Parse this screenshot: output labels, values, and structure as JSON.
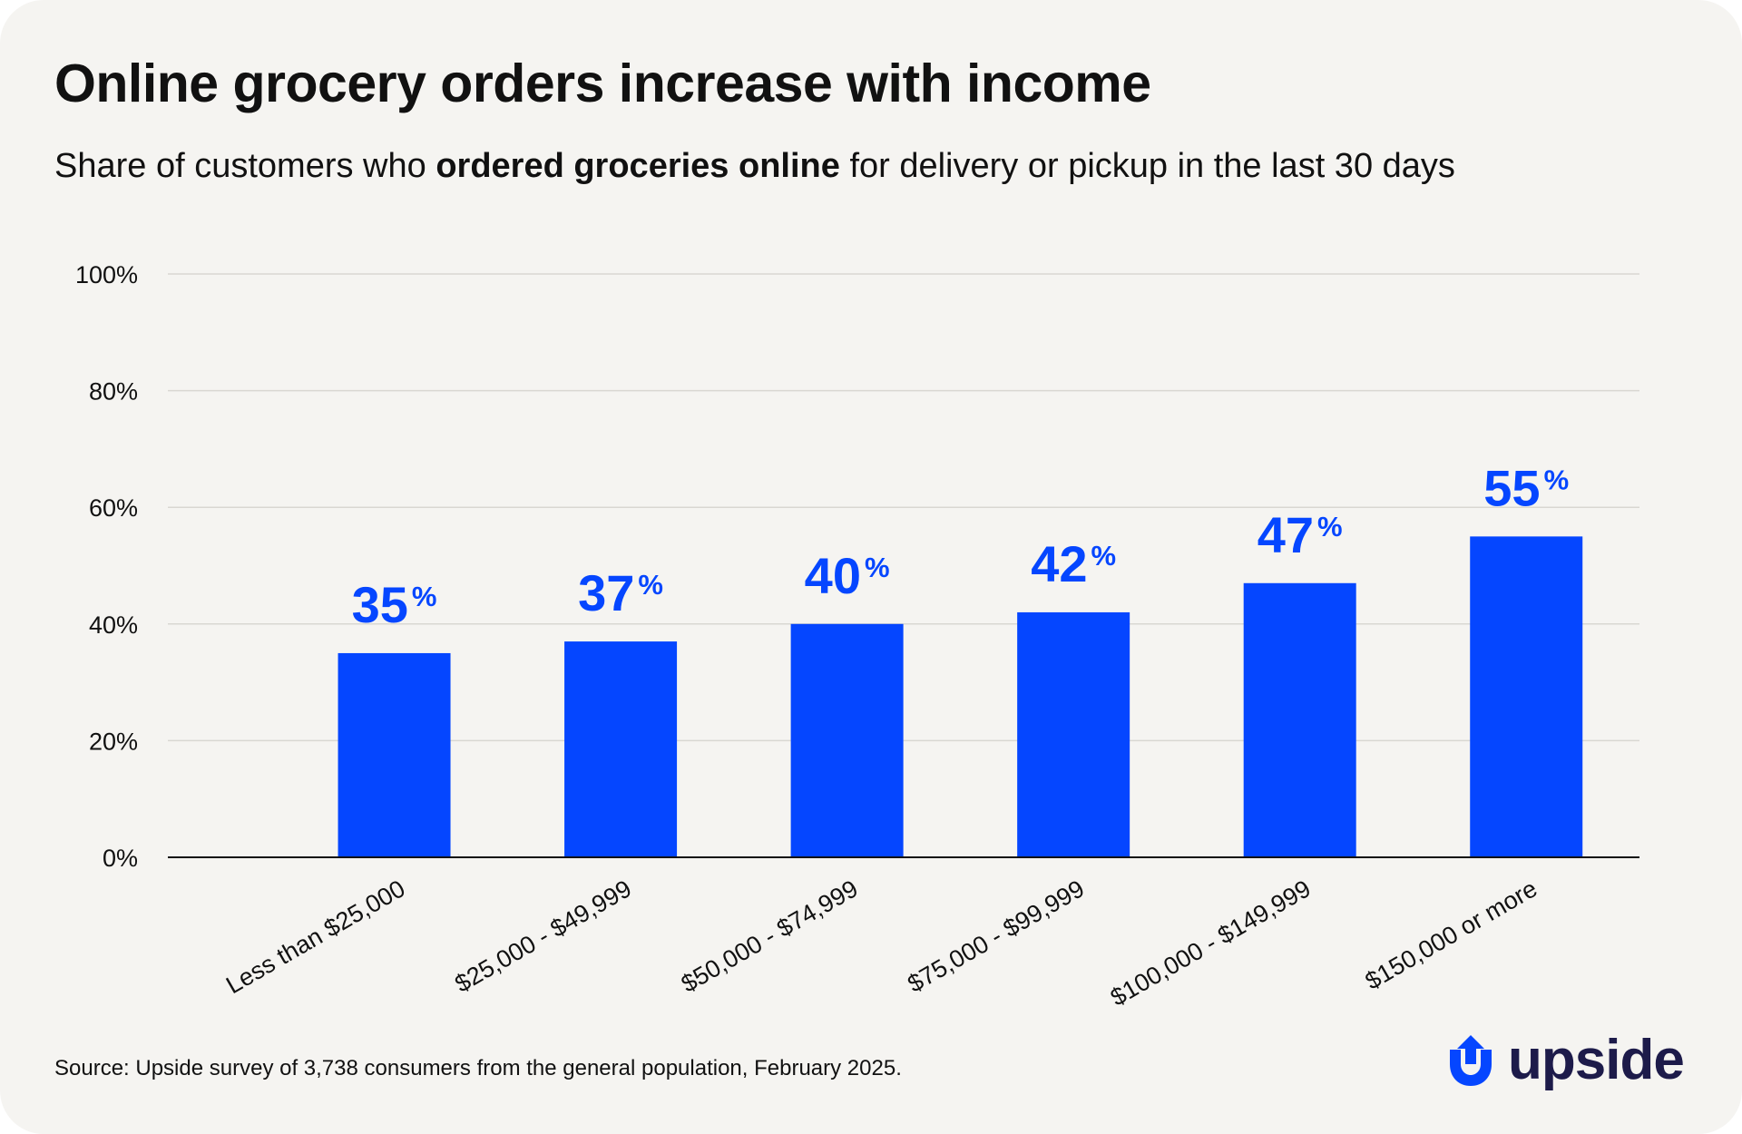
{
  "header": {
    "title": "Online grocery orders increase with income",
    "subtitle_pre": "Share of customers who ",
    "subtitle_bold": "ordered groceries online",
    "subtitle_post": " for delivery or pickup in the last 30 days"
  },
  "footer": {
    "source": "Source: Upside survey of 3,738 consumers from the general population, February 2025.",
    "brand": "upside"
  },
  "colors": {
    "bar": "#0546ff",
    "label": "#0546ff",
    "grid": "#d9d7d2",
    "axis": "#111111",
    "background": "#f5f4f1",
    "brand_text": "#1d1b4a"
  },
  "chart_data": {
    "type": "bar",
    "categories": [
      "Less than $25,000",
      "$25,000 - $49,999",
      "$50,000 - $74,999",
      "$75,000 - $99,999",
      "$100,000 - $149,999",
      "$150,000 or more"
    ],
    "values": [
      35,
      37,
      40,
      42,
      47,
      55
    ],
    "value_labels": [
      "35",
      "37",
      "40",
      "42",
      "47",
      "55"
    ],
    "value_suffix": "%",
    "ylim": [
      0,
      100
    ],
    "yticks": [
      0,
      20,
      40,
      60,
      80,
      100
    ],
    "ytick_labels": [
      "0%",
      "20%",
      "40%",
      "60%",
      "80%",
      "100%"
    ],
    "grid": true,
    "legend": "none",
    "xlabel": "",
    "ylabel": ""
  }
}
